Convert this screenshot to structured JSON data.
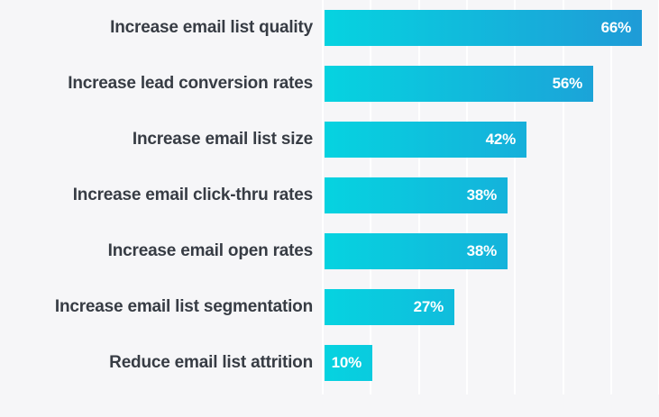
{
  "chart_data": {
    "type": "bar",
    "orientation": "horizontal",
    "title": "",
    "xlabel": "",
    "ylabel": "",
    "categories": [
      "Increase email list quality",
      "Increase lead conversion rates",
      "Increase email list size",
      "Increase email click-thru rates",
      "Increase email open rates",
      "Increase email list segmentation",
      "Reduce email list attrition"
    ],
    "values": [
      66,
      56,
      42,
      38,
      38,
      27,
      10
    ],
    "value_labels": [
      "66%",
      "56%",
      "42%",
      "38%",
      "38%",
      "27%",
      "10%"
    ],
    "value_suffix": "%",
    "xlim": [
      0,
      70
    ],
    "grid": true,
    "gridline_interval_pct": 10,
    "legend": false,
    "colors": {
      "bar_gradient_start": "#06d3e0",
      "bar_gradient_end": "#1f9bd7",
      "background": "#f6f6f8",
      "gridline": "#ffffff",
      "category_label": "#373c44",
      "value_label": "#ffffff"
    }
  }
}
